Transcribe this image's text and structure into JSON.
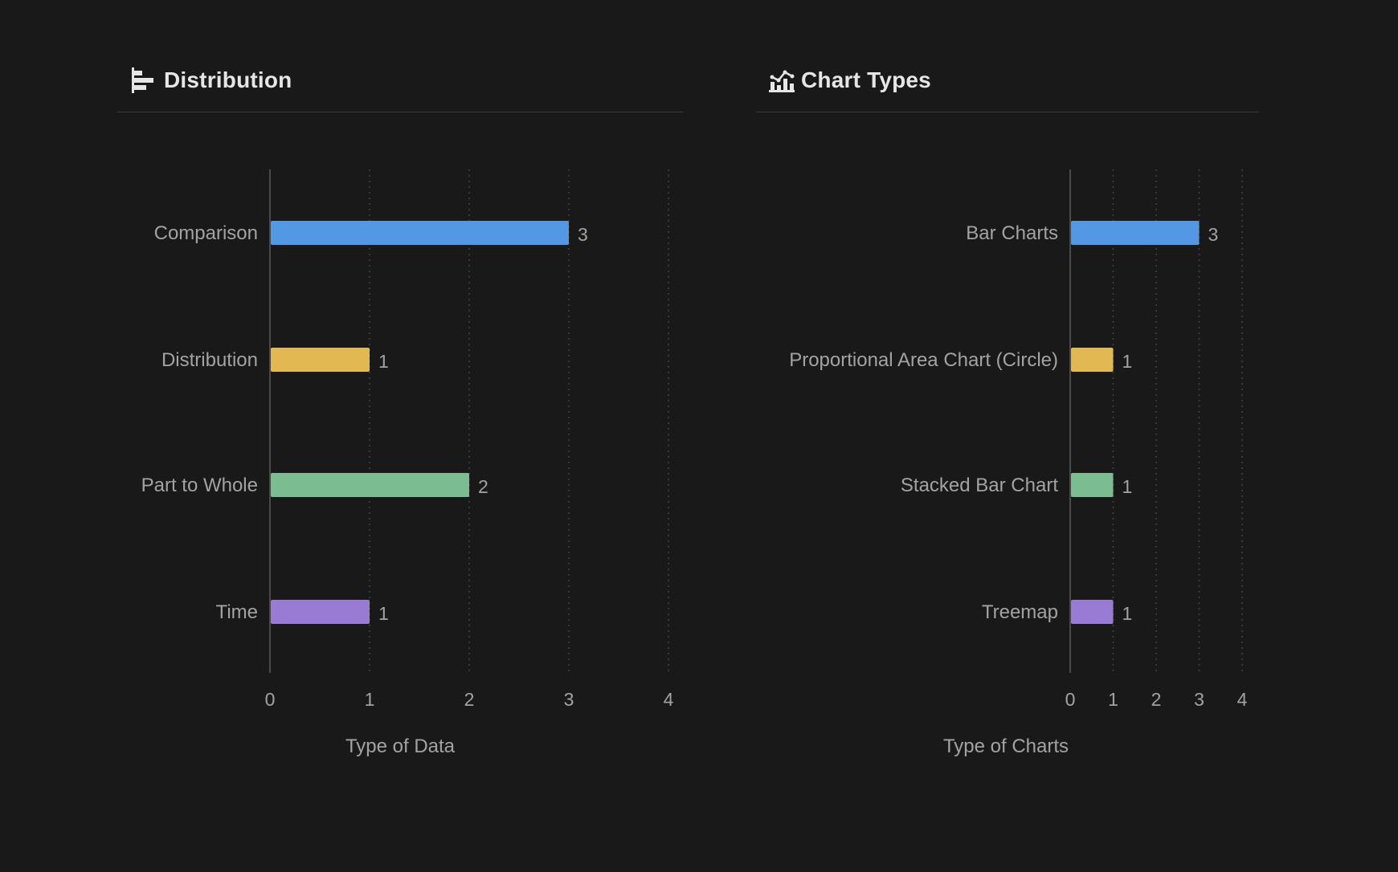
{
  "panels": [
    {
      "title": "Distribution",
      "icon": "horizontal-bar-chart-icon"
    },
    {
      "title": "Chart Types",
      "icon": "chart-types-icon"
    }
  ],
  "colors": {
    "background": "#191919",
    "blue": "#5398e3",
    "yellow": "#e2b852",
    "green": "#7bbd91",
    "purple": "#9a7bd3",
    "axis": "#4a4a4a",
    "grid": "#444444",
    "text": "#a3a3a3",
    "title": "#e6e6e6"
  },
  "chart_data": [
    {
      "type": "bar",
      "orientation": "horizontal",
      "categories": [
        "Comparison",
        "Distribution",
        "Part to Whole",
        "Time"
      ],
      "values": [
        3,
        1,
        2,
        1
      ],
      "bar_colors": [
        "#5398e3",
        "#e2b852",
        "#7bbd91",
        "#9a7bd3"
      ],
      "xlabel": "Type of Data",
      "ylabel": "",
      "xlim": [
        0,
        4
      ],
      "xticks": [
        "0",
        "1",
        "2",
        "3",
        "4"
      ],
      "grid": "vertical dotted",
      "legend": "none"
    },
    {
      "type": "bar",
      "orientation": "horizontal",
      "categories": [
        "Bar Charts",
        "Proportional Area Chart (Circle)",
        "Stacked Bar Chart",
        "Treemap"
      ],
      "values": [
        3,
        1,
        1,
        1
      ],
      "bar_colors": [
        "#5398e3",
        "#e2b852",
        "#7bbd91",
        "#9a7bd3"
      ],
      "xlabel": "Type of Charts",
      "ylabel": "",
      "xlim": [
        0,
        4
      ],
      "xticks": [
        "0",
        "1",
        "2",
        "3",
        "4"
      ],
      "grid": "vertical dotted",
      "legend": "none"
    }
  ]
}
